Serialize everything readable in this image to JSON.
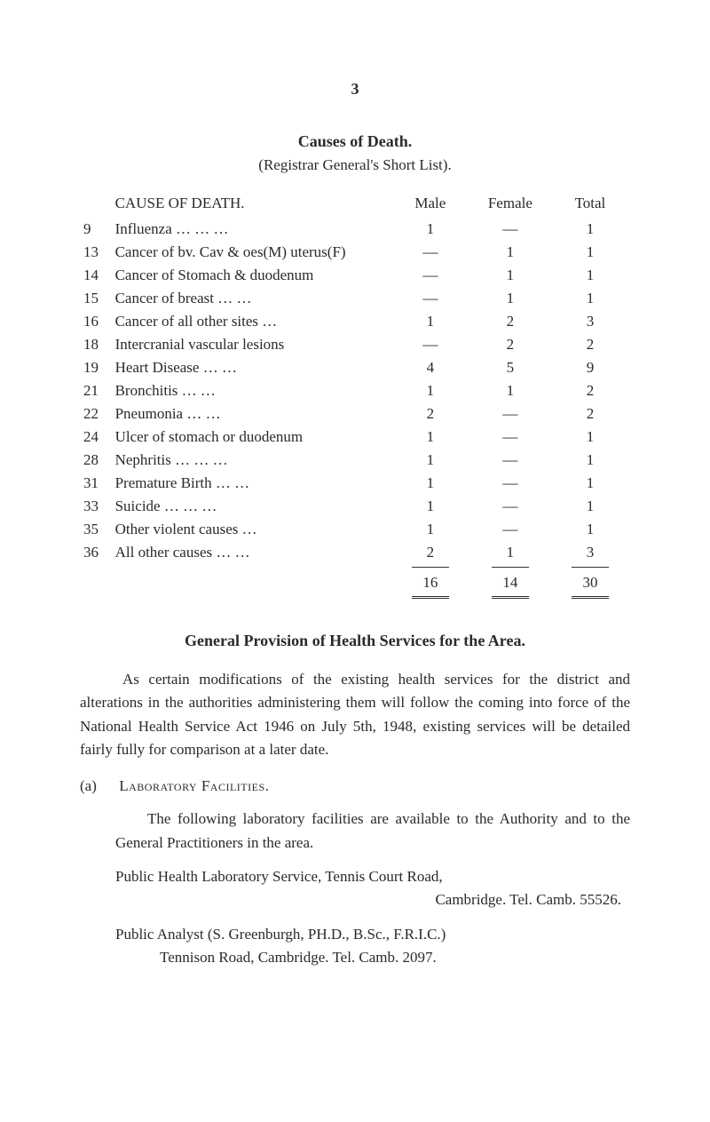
{
  "page_number": "3",
  "title": "Causes of Death.",
  "subtitle": "(Registrar General's Short List).",
  "columns": {
    "cause": "CAUSE  OF  DEATH.",
    "male": "Male",
    "female": "Female",
    "total": "Total"
  },
  "rows": [
    {
      "id": "9",
      "cause": "Influenza …",
      "dots": "…          …",
      "male": "1",
      "female": "—",
      "total": "1"
    },
    {
      "id": "13",
      "cause": "Cancer of bv. Cav & oes(M) uterus(F)",
      "dots": "",
      "male": "—",
      "female": "1",
      "total": "1"
    },
    {
      "id": "14",
      "cause": "Cancer of Stomach & duodenum",
      "dots": "",
      "male": "—",
      "female": "1",
      "total": "1"
    },
    {
      "id": "15",
      "cause": "Cancer of breast",
      "dots": "…          …",
      "male": "—",
      "female": "1",
      "total": "1"
    },
    {
      "id": "16",
      "cause": "Cancer of all other sites",
      "dots": "…",
      "male": "1",
      "female": "2",
      "total": "3"
    },
    {
      "id": "18",
      "cause": "Intercranial vascular lesions",
      "dots": "",
      "male": "—",
      "female": "2",
      "total": "2"
    },
    {
      "id": "19",
      "cause": "Heart Disease",
      "dots": "…          …",
      "male": "4",
      "female": "5",
      "total": "9"
    },
    {
      "id": "21",
      "cause": "Bronchitis",
      "dots": "…          …",
      "male": "1",
      "female": "1",
      "total": "2"
    },
    {
      "id": "22",
      "cause": "Pneumonia",
      "dots": "…          …",
      "male": "2",
      "female": "—",
      "total": "2"
    },
    {
      "id": "24",
      "cause": "Ulcer of stomach or duodenum",
      "dots": "",
      "male": "1",
      "female": "—",
      "total": "1"
    },
    {
      "id": "28",
      "cause": "Nephritis …",
      "dots": "…          …",
      "male": "1",
      "female": "—",
      "total": "1"
    },
    {
      "id": "31",
      "cause": "Premature Birth",
      "dots": "…          …",
      "male": "1",
      "female": "—",
      "total": "1"
    },
    {
      "id": "33",
      "cause": "Suicide",
      "dots": "…          …          …",
      "male": "1",
      "female": "—",
      "total": "1"
    },
    {
      "id": "35",
      "cause": "Other violent causes",
      "dots": "…",
      "male": "1",
      "female": "—",
      "total": "1"
    },
    {
      "id": "36",
      "cause": "All other causes",
      "dots": "…          …",
      "male": "2",
      "female": "1",
      "total": "3"
    }
  ],
  "totals": {
    "male": "16",
    "female": "14",
    "total": "30"
  },
  "section_heading": "General Provision of Health Services for the Area.",
  "para1": "As certain modifications of the existing health services for the district and alterations in the authorities administering them will follow the coming into force of the National Health Service Act 1946 on July 5th, 1948, existing services will be detailed fairly fully for comparison at a later date.",
  "sub_a_letter": "(a)",
  "sub_a_title": "Laboratory Facilities.",
  "sub_a_p1": "The following laboratory facilities are available to the Authority and to the General Practitioners in the area.",
  "sub_a_p2a": "Public Health Laboratory Service, Tennis Court Road,",
  "sub_a_p2b": "Cambridge.     Tel.  Camb. 55526.",
  "sub_a_p3a": "Public Analyst (S. Greenburgh, PH.D., B.Sc., F.R.I.C.)",
  "sub_a_p3b": "Tennison Road, Cambridge.       Tel.  Camb. 2097."
}
